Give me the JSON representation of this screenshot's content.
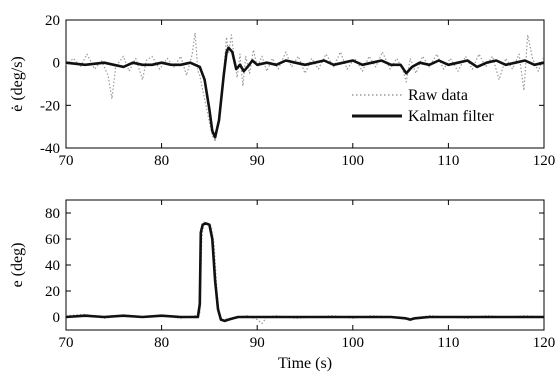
{
  "chart_data": [
    {
      "type": "line",
      "ylabel": "ė (deg/s)",
      "xlim": [
        70,
        120
      ],
      "ylim": [
        -40,
        20
      ],
      "xticks": [
        70,
        80,
        90,
        100,
        110,
        120
      ],
      "yticks": [
        -40,
        -20,
        0,
        20
      ],
      "legend": {
        "placement": "right",
        "entries": [
          "Raw data",
          "Kalman filter"
        ]
      },
      "colors": {
        "raw": "#9a9a9a",
        "filter": "#111111"
      },
      "series": [
        {
          "name": "Raw data",
          "style": "dotted",
          "x": [
            70,
            70.8,
            71.5,
            72.2,
            73,
            73.7,
            74.4,
            74.8,
            75.2,
            76,
            76.6,
            77.3,
            78,
            78.4,
            79,
            79.8,
            80.6,
            81.3,
            82,
            82.6,
            83.2,
            83.5,
            83.8,
            84,
            84.3,
            84.7,
            85,
            85.3,
            85.6,
            85.9,
            86.2,
            86.5,
            86.8,
            87,
            87.3,
            87.6,
            87.9,
            88.2,
            88.5,
            88.8,
            89.2,
            89.6,
            90,
            90.5,
            91,
            91.6,
            92.2,
            93,
            93.6,
            94.3,
            95,
            95.7,
            96.4,
            97.2,
            98,
            98.7,
            99.4,
            100.2,
            101,
            101.7,
            102.4,
            103.1,
            103.9,
            104.6,
            105.2,
            105.6,
            106,
            106.6,
            107.3,
            108,
            108.8,
            109.5,
            110.2,
            111,
            111.8,
            112.5,
            113.2,
            113.9,
            114.6,
            115.3,
            116,
            116.7,
            117.4,
            117.9,
            118.3,
            118.8,
            119.4,
            120
          ],
          "y": [
            -1,
            2,
            -2,
            4,
            -3,
            1,
            -6,
            -17,
            -2,
            3,
            -4,
            2,
            -8,
            1,
            3,
            -3,
            2,
            -2,
            3,
            -6,
            4,
            14,
            -4,
            -6,
            -13,
            -21,
            -28,
            -34,
            -37,
            -30,
            -18,
            -4,
            12,
            4,
            13,
            2,
            -7,
            4,
            -11,
            3,
            -5,
            6,
            -2,
            3,
            -4,
            2,
            -3,
            5,
            -2,
            3,
            -5,
            2,
            -3,
            4,
            -2,
            5,
            -3,
            2,
            -4,
            3,
            -2,
            5,
            -3,
            2,
            -3,
            -9,
            2,
            -5,
            3,
            -2,
            4,
            -3,
            2,
            -4,
            3,
            -3,
            4,
            -2,
            3,
            -8,
            2,
            -3,
            4,
            -13,
            13,
            2,
            -4,
            3
          ]
        },
        {
          "name": "Kalman filter",
          "style": "solid",
          "x": [
            70,
            72,
            74,
            75,
            76,
            77,
            78,
            79,
            80,
            81,
            82,
            83,
            84,
            84.5,
            85,
            85.3,
            85.6,
            86,
            86.5,
            86.8,
            87,
            87.4,
            87.8,
            88.2,
            88.6,
            89,
            89.5,
            90,
            91,
            92,
            93,
            94,
            95,
            96,
            97,
            98,
            99,
            100,
            101,
            102,
            103,
            104,
            105,
            105.6,
            106.2,
            107,
            108,
            109,
            110,
            111,
            112,
            113,
            114,
            115,
            116,
            117,
            118,
            119,
            120
          ],
          "y": [
            0,
            -1,
            0,
            -1,
            -2,
            0,
            -1,
            -1,
            0,
            -1,
            -1,
            0,
            -2,
            -8,
            -22,
            -32,
            -35,
            -27,
            -6,
            5,
            7,
            5,
            -3,
            -1,
            -4,
            -2,
            1,
            -1,
            0,
            -1,
            1,
            0,
            -1,
            0,
            1,
            -1,
            0,
            1,
            -1,
            0,
            1,
            -1,
            -1,
            -5,
            -2,
            0,
            -1,
            1,
            -1,
            0,
            1,
            -2,
            0,
            1,
            -1,
            0,
            1,
            -1,
            0
          ]
        }
      ]
    },
    {
      "type": "line",
      "xlabel": "Time (s)",
      "ylabel": "e (deg)",
      "xlim": [
        70,
        120
      ],
      "ylim": [
        -10,
        90
      ],
      "xticks": [
        70,
        80,
        90,
        100,
        110,
        120
      ],
      "yticks": [
        0,
        20,
        40,
        60,
        80
      ],
      "series": [
        {
          "name": "Raw data",
          "style": "dotted",
          "x": [
            70,
            72,
            74,
            76,
            78,
            80,
            82,
            83.5,
            84,
            84.2,
            84.4,
            84.8,
            85.2,
            85.5,
            85.8,
            86,
            86.3,
            86.6,
            87,
            87.5,
            88,
            89,
            90,
            90.5,
            91,
            92,
            94,
            96,
            98,
            100,
            102,
            104,
            106,
            108,
            110,
            112,
            114,
            116,
            118,
            120
          ],
          "y": [
            1,
            2,
            -1,
            1,
            0,
            1,
            -1,
            1,
            2,
            60,
            73,
            72,
            70,
            55,
            20,
            4,
            -3,
            -2,
            -1,
            -1,
            0,
            1,
            -2,
            -5,
            0,
            1,
            -1,
            0,
            1,
            -1,
            1,
            0,
            -1,
            1,
            0,
            -1,
            1,
            0,
            1,
            0
          ]
        },
        {
          "name": "Kalman filter",
          "style": "solid",
          "x": [
            70,
            72,
            74,
            76,
            78,
            80,
            82,
            83.8,
            84,
            84.1,
            84.3,
            84.6,
            85,
            85.3,
            85.6,
            85.9,
            86.2,
            86.6,
            87,
            87.5,
            88,
            89,
            90,
            92,
            94,
            96,
            98,
            100,
            102,
            104,
            105.5,
            106,
            106.5,
            108,
            110,
            112,
            114,
            116,
            118,
            120
          ],
          "y": [
            0,
            1,
            0,
            1,
            0,
            1,
            0,
            0,
            10,
            65,
            71,
            72,
            71,
            60,
            28,
            6,
            -2,
            -3,
            -2,
            -1,
            0,
            0,
            0,
            0,
            0,
            0,
            0,
            0,
            0,
            0,
            -1,
            -2,
            -1,
            0,
            0,
            0,
            0,
            0,
            0,
            0
          ]
        }
      ]
    }
  ]
}
